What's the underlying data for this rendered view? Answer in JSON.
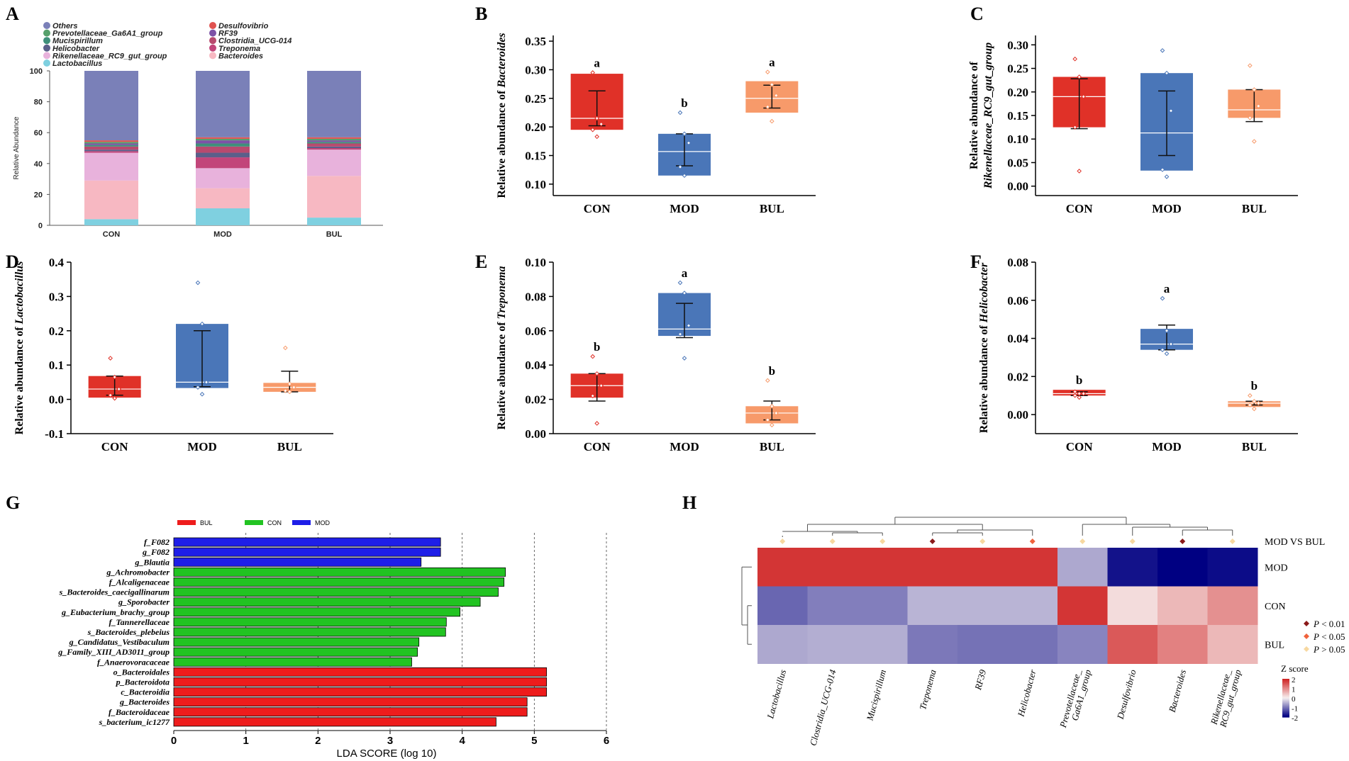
{
  "panel_letters": [
    "A",
    "B",
    "C",
    "D",
    "E",
    "F",
    "G",
    "H"
  ],
  "groups": [
    "CON",
    "MOD",
    "BUL"
  ],
  "colors": {
    "CON": "#e03128",
    "MOD": "#4a76b8",
    "BUL": "#f79a6a",
    "lefse_BUL": "#ee1c1c",
    "lefse_CON": "#22c322",
    "lefse_MOD": "#1e1ee8"
  },
  "chart_data": [
    {
      "id": "A",
      "type": "bar",
      "stacked": true,
      "ylabel": "Relative Abundance",
      "categories": [
        "CON",
        "MOD",
        "BUL"
      ],
      "ylim": [
        0,
        100
      ],
      "yticks": [
        0,
        20,
        40,
        60,
        80,
        100
      ],
      "legend": [
        {
          "name": "Others",
          "color": "#7a80b8"
        },
        {
          "name": "Desulfovibrio",
          "color": "#e05250"
        },
        {
          "name": "Prevotellaceae_Ga6A1_group",
          "color": "#56a06b"
        },
        {
          "name": "RF39",
          "color": "#7d52a6"
        },
        {
          "name": "Mucispirillum",
          "color": "#3f8f7a"
        },
        {
          "name": "Clostridia_UCG-014",
          "color": "#b84a6e"
        },
        {
          "name": "Helicobacter",
          "color": "#5b5f8a"
        },
        {
          "name": "Treponema",
          "color": "#c2457a"
        },
        {
          "name": "Rikenellaceae_RC9_gut_group",
          "color": "#e8b2dc"
        },
        {
          "name": "Bacteroides",
          "color": "#f7b8c2"
        },
        {
          "name": "Lactobacillus",
          "color": "#7fd0e0"
        }
      ],
      "stack_order": [
        "Lactobacillus",
        "Bacteroides",
        "Rikenellaceae_RC9_gut_group",
        "Treponema",
        "Helicobacter",
        "Clostridia_UCG-014",
        "Mucispirillum",
        "RF39",
        "Prevotellaceae_Ga6A1_group",
        "Desulfovibrio",
        "Others"
      ],
      "series": [
        {
          "name": "Lactobacillus",
          "values": [
            4,
            11,
            5
          ]
        },
        {
          "name": "Bacteroides",
          "values": [
            25,
            13,
            27
          ]
        },
        {
          "name": "Rikenellaceae_RC9_gut_group",
          "values": [
            18,
            13,
            17
          ]
        },
        {
          "name": "Treponema",
          "values": [
            1,
            7,
            1
          ]
        },
        {
          "name": "Helicobacter",
          "values": [
            1,
            3,
            1
          ]
        },
        {
          "name": "Clostridia_UCG-014",
          "values": [
            2,
            4,
            2
          ]
        },
        {
          "name": "Mucispirillum",
          "values": [
            1,
            2,
            1
          ]
        },
        {
          "name": "RF39",
          "values": [
            1,
            2,
            1
          ]
        },
        {
          "name": "Prevotellaceae_Ga6A1_group",
          "values": [
            1,
            1,
            1
          ]
        },
        {
          "name": "Desulfovibrio",
          "values": [
            1,
            1,
            1
          ]
        },
        {
          "name": "Others",
          "values": [
            45,
            43,
            43
          ]
        }
      ]
    },
    {
      "id": "B",
      "type": "box",
      "ylabel_prefix": "Relative abundance of ",
      "ylabel_taxon": "Bacteroides",
      "ylim": [
        0.08,
        0.36
      ],
      "yticks": [
        0.1,
        0.15,
        0.2,
        0.25,
        0.3,
        0.35
      ],
      "decimals": 2,
      "boxes": [
        {
          "group": "CON",
          "q1": 0.195,
          "median": 0.215,
          "q3": 0.293,
          "mean": 0.232,
          "sem_low": 0.202,
          "sem_high": 0.263,
          "points": [
            0.295,
            0.215,
            0.205,
            0.195,
            0.183
          ],
          "letter": "a"
        },
        {
          "group": "MOD",
          "q1": 0.115,
          "median": 0.157,
          "q3": 0.188,
          "mean": 0.16,
          "sem_low": 0.132,
          "sem_high": 0.188,
          "points": [
            0.225,
            0.188,
            0.172,
            0.13,
            0.115
          ],
          "letter": "b"
        },
        {
          "group": "BUL",
          "q1": 0.225,
          "median": 0.25,
          "q3": 0.28,
          "mean": 0.253,
          "sem_low": 0.233,
          "sem_high": 0.273,
          "points": [
            0.296,
            0.274,
            0.255,
            0.235,
            0.21
          ],
          "letter": "a"
        }
      ]
    },
    {
      "id": "C",
      "type": "box",
      "ylabel_prefix": "Relative abundance of",
      "ylabel_taxon": "Rikenellaceae_RC9_gut_group",
      "two_line": true,
      "ylim": [
        -0.02,
        0.32
      ],
      "yticks": [
        0.0,
        0.05,
        0.1,
        0.15,
        0.2,
        0.25,
        0.3
      ],
      "decimals": 2,
      "boxes": [
        {
          "group": "CON",
          "q1": 0.125,
          "median": 0.19,
          "q3": 0.232,
          "mean": 0.175,
          "sem_low": 0.122,
          "sem_high": 0.228,
          "points": [
            0.27,
            0.232,
            0.19,
            0.125,
            0.032
          ],
          "letter": ""
        },
        {
          "group": "MOD",
          "q1": 0.033,
          "median": 0.113,
          "q3": 0.24,
          "mean": 0.135,
          "sem_low": 0.065,
          "sem_high": 0.202,
          "points": [
            0.288,
            0.24,
            0.16,
            0.035,
            0.02
          ],
          "letter": ""
        },
        {
          "group": "BUL",
          "q1": 0.145,
          "median": 0.162,
          "q3": 0.205,
          "mean": 0.17,
          "sem_low": 0.137,
          "sem_high": 0.205,
          "points": [
            0.256,
            0.205,
            0.17,
            0.145,
            0.095
          ],
          "letter": ""
        }
      ]
    },
    {
      "id": "D",
      "type": "box",
      "ylabel_prefix": "Relative abundance of ",
      "ylabel_taxon": "Lactobacillus",
      "ylim": [
        -0.1,
        0.4
      ],
      "yticks": [
        -0.1,
        0.0,
        0.1,
        0.2,
        0.3,
        0.4
      ],
      "decimals": 1,
      "boxes": [
        {
          "group": "CON",
          "q1": 0.005,
          "median": 0.03,
          "q3": 0.068,
          "mean": 0.04,
          "sem_low": 0.012,
          "sem_high": 0.068,
          "points": [
            0.12,
            0.065,
            0.03,
            0.012,
            0.003
          ],
          "letter": ""
        },
        {
          "group": "MOD",
          "q1": 0.033,
          "median": 0.05,
          "q3": 0.22,
          "mean": 0.12,
          "sem_low": 0.037,
          "sem_high": 0.2,
          "points": [
            0.34,
            0.22,
            0.05,
            0.035,
            0.015
          ],
          "letter": ""
        },
        {
          "group": "BUL",
          "q1": 0.022,
          "median": 0.035,
          "q3": 0.048,
          "mean": 0.045,
          "sem_low": 0.022,
          "sem_high": 0.082,
          "points": [
            0.15,
            0.045,
            0.035,
            0.025,
            0.022
          ],
          "letter": ""
        }
      ]
    },
    {
      "id": "E",
      "type": "box",
      "ylabel_prefix": "Relative abundance of ",
      "ylabel_taxon": "Treponema",
      "ylim": [
        0.0,
        0.1
      ],
      "yticks": [
        0.0,
        0.02,
        0.04,
        0.06,
        0.08,
        0.1
      ],
      "decimals": 2,
      "boxes": [
        {
          "group": "CON",
          "q1": 0.021,
          "median": 0.028,
          "q3": 0.035,
          "mean": 0.028,
          "sem_low": 0.019,
          "sem_high": 0.035,
          "points": [
            0.045,
            0.035,
            0.028,
            0.022,
            0.006
          ],
          "letter": "b"
        },
        {
          "group": "MOD",
          "q1": 0.057,
          "median": 0.061,
          "q3": 0.082,
          "mean": 0.066,
          "sem_low": 0.056,
          "sem_high": 0.076,
          "points": [
            0.088,
            0.082,
            0.063,
            0.058,
            0.044
          ],
          "letter": "a"
        },
        {
          "group": "BUL",
          "q1": 0.006,
          "median": 0.012,
          "q3": 0.016,
          "mean": 0.014,
          "sem_low": 0.008,
          "sem_high": 0.019,
          "points": [
            0.031,
            0.016,
            0.012,
            0.008,
            0.005
          ],
          "letter": "b"
        }
      ]
    },
    {
      "id": "F",
      "type": "box",
      "ylabel_prefix": "Relative abundance of ",
      "ylabel_taxon": "Helicobacter",
      "ylim": [
        -0.01,
        0.08
      ],
      "yticks": [
        0.0,
        0.02,
        0.04,
        0.06,
        0.08
      ],
      "decimals": 2,
      "boxes": [
        {
          "group": "CON",
          "q1": 0.01,
          "median": 0.011,
          "q3": 0.013,
          "mean": 0.011,
          "sem_low": 0.01,
          "sem_high": 0.012,
          "points": [
            0.012,
            0.011,
            0.011,
            0.01,
            0.009
          ],
          "letter": "b"
        },
        {
          "group": "MOD",
          "q1": 0.034,
          "median": 0.037,
          "q3": 0.045,
          "mean": 0.04,
          "sem_low": 0.034,
          "sem_high": 0.047,
          "points": [
            0.061,
            0.044,
            0.037,
            0.034,
            0.032
          ],
          "letter": "a"
        },
        {
          "group": "BUL",
          "q1": 0.004,
          "median": 0.006,
          "q3": 0.007,
          "mean": 0.006,
          "sem_low": 0.005,
          "sem_high": 0.007,
          "points": [
            0.01,
            0.007,
            0.006,
            0.005,
            0.003
          ],
          "letter": "b"
        }
      ]
    },
    {
      "id": "G",
      "type": "bar",
      "orientation": "horizontal",
      "xlabel": "LDA SCORE (log 10)",
      "xlim": [
        0,
        6
      ],
      "xticks": [
        0,
        1,
        2,
        3,
        4,
        5,
        6
      ],
      "legend": [
        "BUL",
        "CON",
        "MOD"
      ],
      "bars": [
        {
          "label": "f_F082",
          "value": 3.7,
          "group": "MOD"
        },
        {
          "label": "g_F082",
          "value": 3.7,
          "group": "MOD"
        },
        {
          "label": "g_Blautia",
          "value": 3.43,
          "group": "MOD"
        },
        {
          "label": "g_Achromobacter",
          "value": 4.6,
          "group": "CON"
        },
        {
          "label": "f_Alcaligenaceae",
          "value": 4.58,
          "group": "CON"
        },
        {
          "label": "s_Bacteroides_caecigallinarum",
          "value": 4.5,
          "group": "CON"
        },
        {
          "label": "g_Sporobacter",
          "value": 4.25,
          "group": "CON"
        },
        {
          "label": "g_Eubacterium_brachy_group",
          "value": 3.97,
          "group": "CON"
        },
        {
          "label": "f_Tannerellaceae",
          "value": 3.78,
          "group": "CON"
        },
        {
          "label": "s_Bacteroides_plebeius",
          "value": 3.77,
          "group": "CON"
        },
        {
          "label": "g_Candidatus_Vestibaculum",
          "value": 3.4,
          "group": "CON"
        },
        {
          "label": "g_Family_XIII_AD3011_group",
          "value": 3.38,
          "group": "CON"
        },
        {
          "label": "f_Anaerovoracaceae",
          "value": 3.3,
          "group": "CON"
        },
        {
          "label": "o_Bacteroidales",
          "value": 5.17,
          "group": "BUL"
        },
        {
          "label": "p_Bacteroidota",
          "value": 5.17,
          "group": "BUL"
        },
        {
          "label": "c_Bacteroidia",
          "value": 5.17,
          "group": "BUL"
        },
        {
          "label": "g_Bacteroides",
          "value": 4.9,
          "group": "BUL"
        },
        {
          "label": "f_Bacteroidaceae",
          "value": 4.9,
          "group": "BUL"
        },
        {
          "label": "s_bacterium_ic1277",
          "value": 4.47,
          "group": "BUL"
        }
      ]
    },
    {
      "id": "H",
      "type": "heatmap",
      "columns": [
        "Lactobacillus",
        "Clostridia_UCG-014",
        "Mucispirillum",
        "Treponema",
        "RF39",
        "Helicobacter",
        "Prevotellaceae_\nGa6A1_group",
        "Desulfovibrio",
        "Bacteroides",
        "Rikenellaceae_\nRC9_gut_group"
      ],
      "rows": [
        "MOD",
        "CON",
        "BUL"
      ],
      "values": [
        [
          1.85,
          1.85,
          1.85,
          1.85,
          1.85,
          1.85,
          -0.6,
          -1.85,
          -2.0,
          -1.9
        ],
        [
          -1.15,
          -0.95,
          -0.95,
          -0.5,
          -0.5,
          -0.5,
          1.85,
          0.2,
          0.55,
          0.95
        ],
        [
          -0.6,
          -0.55,
          -0.55,
          -1.0,
          -1.05,
          -1.05,
          -0.9,
          1.5,
          1.1,
          0.55
        ]
      ],
      "sig_row_label": "MOD VS BUL",
      "sig": [
        ">0.05",
        ">0.05",
        ">0.05",
        "<0.01",
        ">0.05",
        "<0.05",
        ">0.05",
        ">0.05",
        "<0.01",
        ">0.05"
      ],
      "sig_legend": [
        {
          "key": "<0.01",
          "label": " < 0.01",
          "color": "#8b1a1a"
        },
        {
          "key": "<0.05",
          "label": " < 0.05",
          "color": "#f0623c"
        },
        {
          "key": ">0.05",
          "label": " > 0.05",
          "color": "#f7d8a0"
        }
      ],
      "scale_title": "Z score",
      "scale_ticks": [
        "2",
        "1",
        "0",
        "-1",
        "-2"
      ],
      "scale_range": [
        -2,
        2
      ],
      "p_symbol": "P"
    }
  ]
}
